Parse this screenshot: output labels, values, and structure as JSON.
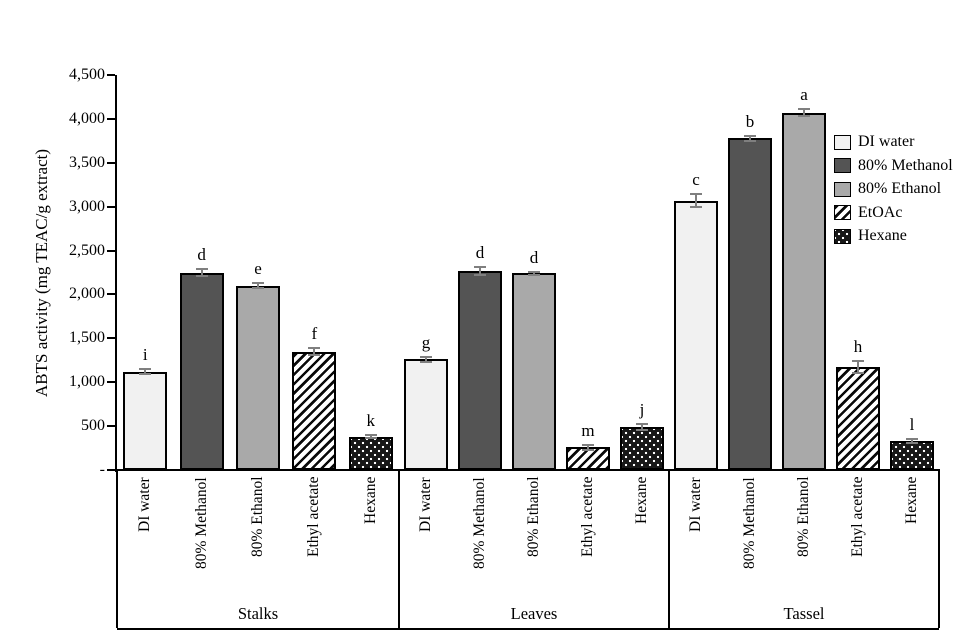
{
  "chart_data": {
    "type": "bar",
    "title": "",
    "xlabel": "",
    "ylabel": "ABTS activity (mg TEAC/g extract)",
    "ylim": [
      0,
      4500
    ],
    "ytick_step": 500,
    "ytick_labels": [
      "-",
      "500",
      "1,000",
      "1,500",
      "2,000",
      "2,500",
      "3,000",
      "3,500",
      "4,000",
      "4,500"
    ],
    "grid": false,
    "legend_position": "right",
    "legend": [
      "DI water",
      "80% Methanol",
      "80% Ethanol",
      "EtOAc",
      "Hexane"
    ],
    "categories": [
      "DI water",
      "80% Methanol",
      "80% Ethanol",
      "Ethyl acetate",
      "Hexane"
    ],
    "groups": [
      {
        "label": "Stalks",
        "values": [
          1120,
          2250,
          2100,
          1350,
          380
        ],
        "errors": [
          30,
          35,
          25,
          35,
          20
        ],
        "letters": [
          "i",
          "d",
          "e",
          "f",
          "k"
        ]
      },
      {
        "label": "Leaves",
        "values": [
          1260,
          2270,
          2240,
          260,
          490
        ],
        "errors": [
          30,
          45,
          20,
          30,
          30
        ],
        "letters": [
          "g",
          "d",
          "d",
          "m",
          "j"
        ]
      },
      {
        "label": "Tassel",
        "values": [
          3070,
          3780,
          4070,
          1170,
          330
        ],
        "errors": [
          70,
          30,
          40,
          70,
          25
        ],
        "letters": [
          "c",
          "b",
          "a",
          "h",
          "l"
        ]
      }
    ],
    "series_styles": [
      {
        "name": "DI water",
        "fill": "#f1f1f1",
        "pattern": "solid"
      },
      {
        "name": "80% Methanol",
        "fill": "#545454",
        "pattern": "solid"
      },
      {
        "name": "80% Ethanol",
        "fill": "#a9a9a9",
        "pattern": "solid"
      },
      {
        "name": "EtOAc",
        "fill": "#ffffff",
        "pattern": "diagonal-hatch"
      },
      {
        "name": "Hexane",
        "fill": "#181818",
        "pattern": "white-dots"
      }
    ],
    "bar_border_color": "#000000",
    "error_bar_color": "#7f7f7f"
  }
}
